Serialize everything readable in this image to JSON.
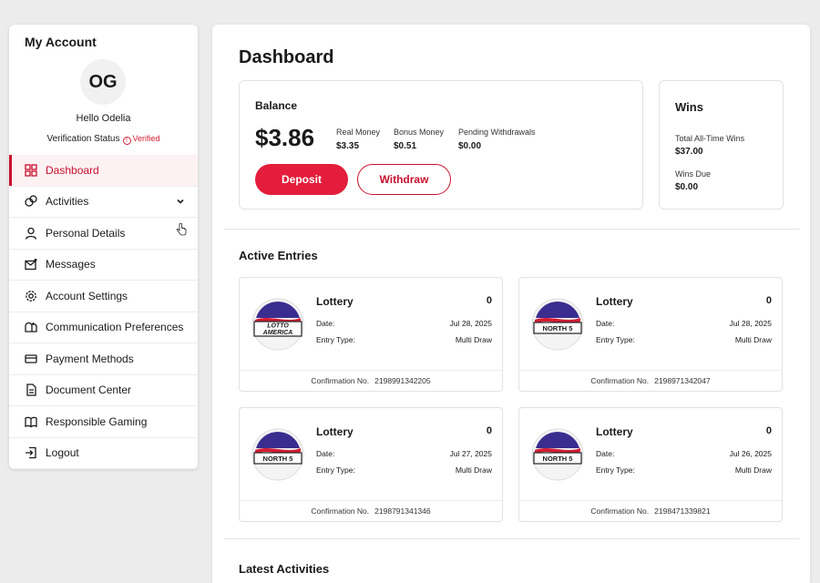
{
  "sidebar": {
    "title": "My Account",
    "avatar_initials": "OG",
    "greeting": "Hello Odelia",
    "verification_label": "Verification Status",
    "verification_icon": "!",
    "verification_value": "Verified",
    "items": [
      {
        "label": "Dashboard",
        "icon": "grid-icon"
      },
      {
        "label": "Activities",
        "icon": "activities-icon"
      },
      {
        "label": "Personal Details",
        "icon": "user-icon"
      },
      {
        "label": "Messages",
        "icon": "mail-icon"
      },
      {
        "label": "Account Settings",
        "icon": "gear-icon"
      },
      {
        "label": "Communication Preferences",
        "icon": "mailbox-icon"
      },
      {
        "label": "Payment Methods",
        "icon": "card-icon"
      },
      {
        "label": "Document Center",
        "icon": "document-icon"
      },
      {
        "label": "Responsible Gaming",
        "icon": "book-icon"
      },
      {
        "label": "Logout",
        "icon": "logout-icon"
      }
    ]
  },
  "main": {
    "title": "Dashboard",
    "balance": {
      "label": "Balance",
      "amount": "$3.86",
      "real_money_label": "Real Money",
      "real_money_value": "$3.35",
      "bonus_money_label": "Bonus Money",
      "bonus_money_value": "$0.51",
      "pending_label": "Pending Withdrawals",
      "pending_value": "$0.00",
      "deposit_label": "Deposit",
      "withdraw_label": "Withdraw"
    },
    "wins": {
      "label": "Wins",
      "total_label": "Total All-Time Wins",
      "total_value": "$37.00",
      "due_label": "Wins Due",
      "due_value": "$0.00"
    },
    "active_entries_title": "Active Entries",
    "entries": [
      {
        "game_logo": "LOTTO AMERICA",
        "logo_line1": "LOTTO",
        "logo_line2": "AMERICA",
        "title": "Lottery",
        "count": "0",
        "date_label": "Date:",
        "date": "Jul 28, 2025",
        "type_label": "Entry Type:",
        "type": "Multi Draw",
        "conf_label": "Confirmation No.",
        "conf": "2198991342205"
      },
      {
        "game_logo": "NORTH 5",
        "logo_line1": "NORTH 5",
        "logo_line2": "",
        "title": "Lottery",
        "count": "0",
        "date_label": "Date:",
        "date": "Jul 28, 2025",
        "type_label": "Entry Type:",
        "type": "Multi Draw",
        "conf_label": "Confirmation No.",
        "conf": "2198971342047"
      },
      {
        "game_logo": "NORTH 5",
        "logo_line1": "NORTH 5",
        "logo_line2": "",
        "title": "Lottery",
        "count": "0",
        "date_label": "Date:",
        "date": "Jul 27, 2025",
        "type_label": "Entry Type:",
        "type": "Multi Draw",
        "conf_label": "Confirmation No.",
        "conf": "2198791341346"
      },
      {
        "game_logo": "NORTH 5",
        "logo_line1": "NORTH 5",
        "logo_line2": "",
        "title": "Lottery",
        "count": "0",
        "date_label": "Date:",
        "date": "Jul 26, 2025",
        "type_label": "Entry Type:",
        "type": "Multi Draw",
        "conf_label": "Confirmation No.",
        "conf": "2198471339821"
      }
    ],
    "latest_activities_title": "Latest Activities"
  },
  "colors": {
    "accent": "#e31d3b",
    "accent_dark": "#c8102e",
    "active_bg": "#fdf2f3",
    "page_bg": "#ececec"
  }
}
